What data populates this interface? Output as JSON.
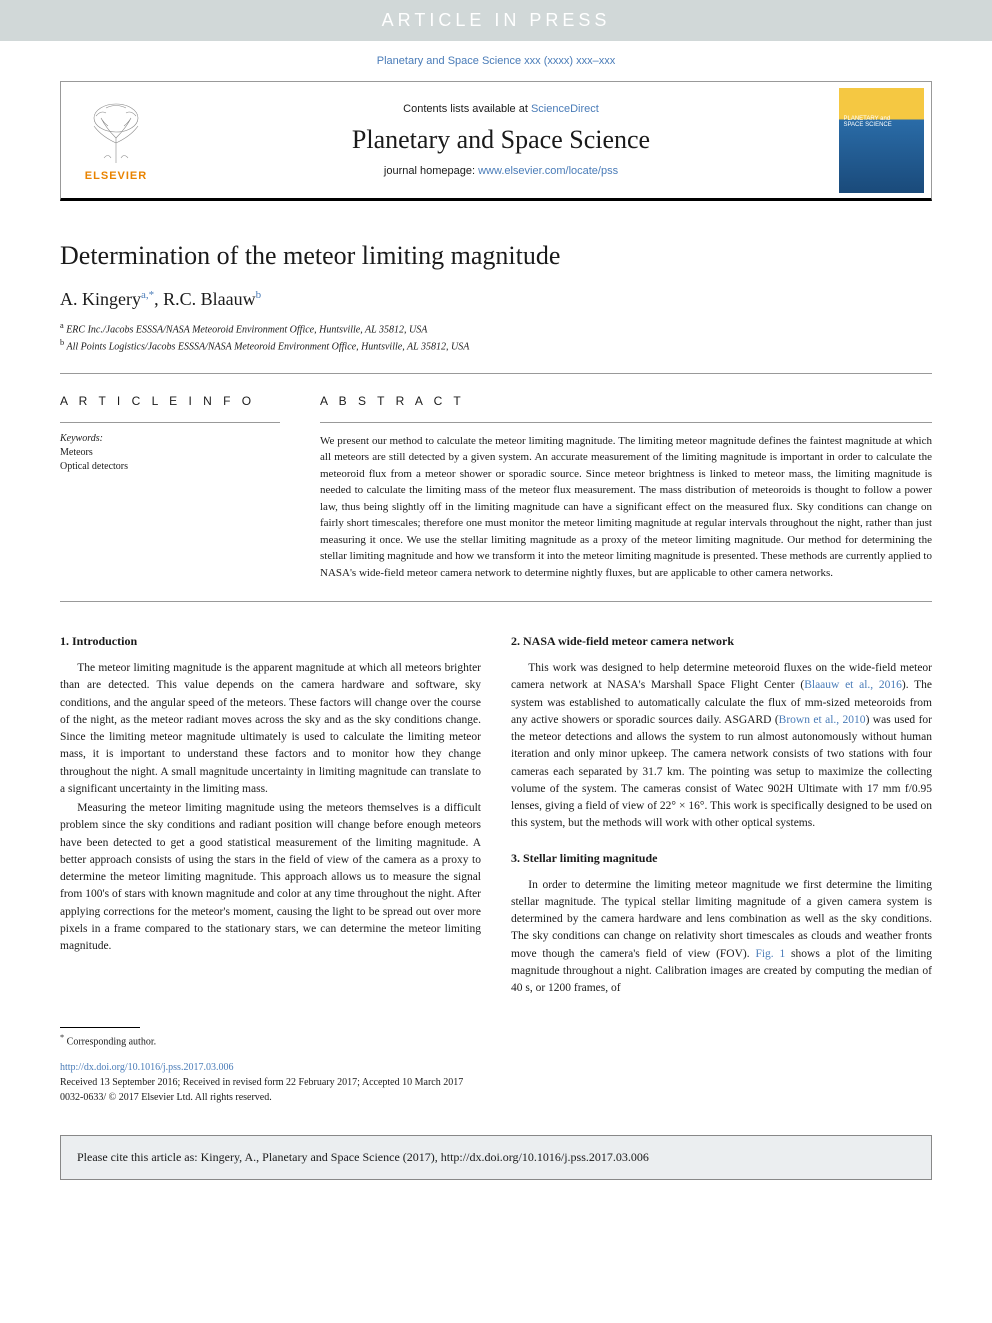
{
  "banner": "ARTICLE IN PRESS",
  "topCitation": "Planetary and Space Science xxx (xxxx) xxx–xxx",
  "header": {
    "contentsText": "Contents lists available at ",
    "contentsLink": "ScienceDirect",
    "journalName": "Planetary and Space Science",
    "homepageLabel": "journal homepage: ",
    "homepageUrl": "www.elsevier.com/locate/pss",
    "publisherName": "ELSEVIER",
    "coverLine1": "PLANETARY and",
    "coverLine2": "SPACE SCIENCE"
  },
  "article": {
    "title": "Determination of the meteor limiting magnitude",
    "authors": [
      {
        "name": "A. Kingery",
        "marks": "a,*"
      },
      {
        "name": "R.C. Blaauw",
        "marks": "b"
      }
    ],
    "affiliations": [
      {
        "mark": "a",
        "text": "ERC Inc./Jacobs ESSSA/NASA Meteoroid Environment Office, Huntsville, AL 35812, USA"
      },
      {
        "mark": "b",
        "text": "All Points Logistics/Jacobs ESSSA/NASA Meteoroid Environment Office, Huntsville, AL 35812, USA"
      }
    ]
  },
  "infoHeading": "A R T I C L E   I N F O",
  "abstractHeading": "A B S T R A C T",
  "keywordsLabel": "Keywords:",
  "keywords": [
    "Meteors",
    "Optical detectors"
  ],
  "abstract": "We present our method to calculate the meteor limiting magnitude. The limiting meteor magnitude defines the faintest magnitude at which all meteors are still detected by a given system. An accurate measurement of the limiting magnitude is important in order to calculate the meteoroid flux from a meteor shower or sporadic source. Since meteor brightness is linked to meteor mass, the limiting magnitude is needed to calculate the limiting mass of the meteor flux measurement. The mass distribution of meteoroids is thought to follow a power law, thus being slightly off in the limiting magnitude can have a significant effect on the measured flux. Sky conditions can change on fairly short timescales; therefore one must monitor the meteor limiting magnitude at regular intervals throughout the night, rather than just measuring it once. We use the stellar limiting magnitude as a proxy of the meteor limiting magnitude. Our method for determining the stellar limiting magnitude and how we transform it into the meteor limiting magnitude is presented. These methods are currently applied to NASA's wide-field meteor camera network to determine nightly fluxes, but are applicable to other camera networks.",
  "sections": [
    {
      "number": "1.",
      "title": "Introduction",
      "paragraphs": [
        "The meteor limiting magnitude is the apparent magnitude at which all meteors brighter than are detected. This value depends on the camera hardware and software, sky conditions, and the angular speed of the meteors. These factors will change over the course of the night, as the meteor radiant moves across the sky and as the sky conditions change. Since the limiting meteor magnitude ultimately is used to calculate the limiting meteor mass, it is important to understand these factors and to monitor how they change throughout the night. A small magnitude uncertainty in limiting magnitude can translate to a significant uncertainty in the limiting mass.",
        "Measuring the meteor limiting magnitude using the meteors themselves is a difficult problem since the sky conditions and radiant position will change before enough meteors have been detected to get a good statistical measurement of the limiting magnitude. A better approach consists of using the stars in the field of view of the camera as a proxy to determine the meteor limiting magnitude. This approach allows us to measure the signal from 100's of stars with known magnitude and color at any time throughout the night. After applying corrections for the meteor's moment, causing the light to be spread out over more pixels in a frame compared to the stationary stars, we can determine the meteor limiting magnitude."
      ]
    },
    {
      "number": "2.",
      "title": "NASA wide-field meteor camera network",
      "paragraphs": [
        "This work was designed to help determine meteoroid fluxes on the wide-field meteor camera network at NASA's Marshall Space Flight Center (<span class=\"ref-link\">Blaauw et al., 2016</span>). The system was established to automatically calculate the flux of mm-sized meteoroids from any active showers or sporadic sources daily. ASGARD (<span class=\"ref-link\">Brown et al., 2010</span>) was used for the meteor detections and allows the system to run almost autonomously without human iteration and only minor upkeep. The camera network consists of two stations with four cameras each separated by 31.7 km. The pointing was setup to maximize the collecting volume of the system. The cameras consist of Watec 902H Ultimate with 17 mm f/0.95 lenses, giving a field of view of 22° × 16°. This work is specifically designed to be used on this system, but the methods will work with other optical systems."
      ]
    },
    {
      "number": "3.",
      "title": "Stellar limiting magnitude",
      "paragraphs": [
        "In order to determine the limiting meteor magnitude we first determine the limiting stellar magnitude. The typical stellar limiting magnitude of a given camera system is determined by the camera hardware and lens combination as well as the sky conditions. The sky conditions can change on relativity short timescales as clouds and weather fronts move though the camera's field of view (FOV). <span class=\"ref-link\">Fig. 1</span> shows a plot of the limiting magnitude throughout a night. Calibration images are created by computing the median of 40 s, or 1200 frames, of"
      ]
    }
  ],
  "footnote": {
    "mark": "*",
    "text": "Corresponding author."
  },
  "doi": "http://dx.doi.org/10.1016/j.pss.2017.03.006",
  "history": "Received 13 September 2016; Received in revised form 22 February 2017; Accepted 10 March 2017",
  "copyright": "0032-0633/ © 2017 Elsevier Ltd. All rights reserved.",
  "citeBox": "Please cite this article as: Kingery, A., Planetary and Space Science (2017), http://dx.doi.org/10.1016/j.pss.2017.03.006",
  "colors": {
    "bannerBg": "#d1d8d8",
    "link": "#4a7cb8",
    "elsevierOrange": "#e98300",
    "coverYellow": "#f5c842",
    "coverBlue": "#2a6ca8",
    "citeBoxBg": "#ebeef0"
  }
}
